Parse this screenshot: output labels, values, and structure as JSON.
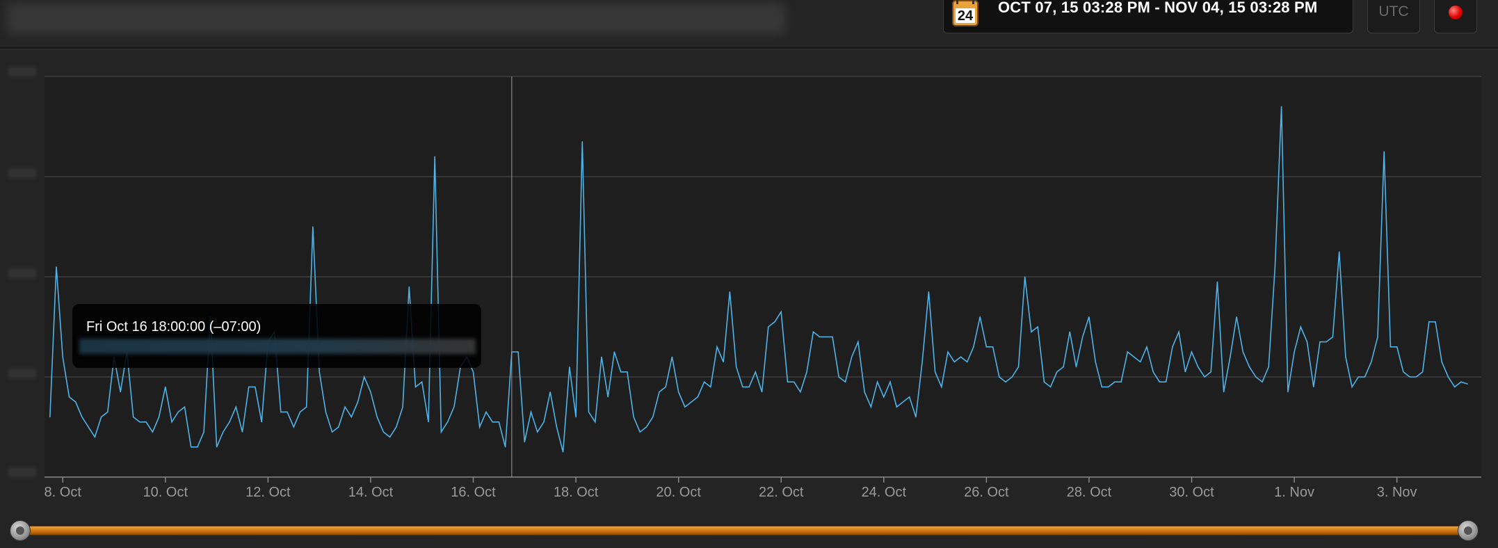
{
  "header": {
    "calendar_day": "24",
    "date_range": "OCT 07, 15 03:28 PM - NOV 04, 15 03:28 PM",
    "timezone_label": "UTC"
  },
  "tooltip": {
    "title": "Fri Oct 16 18:00:00 (–07:00)"
  },
  "colors": {
    "series": "#4fb3e8",
    "accent_slider": "#e08a1e",
    "record": "#e00000"
  },
  "chart_data": {
    "type": "line",
    "x_axis": {
      "type": "date",
      "range": [
        "2015-10-07 15:28",
        "2015-11-04 15:28"
      ],
      "tick_labels": [
        "8. Oct",
        "10. Oct",
        "12. Oct",
        "14. Oct",
        "16. Oct",
        "18. Oct",
        "20. Oct",
        "22. Oct",
        "24. Oct",
        "26. Oct",
        "28. Oct",
        "30. Oct",
        "1. Nov",
        "3. Nov"
      ],
      "tick_dates": [
        "2015-10-08",
        "2015-10-10",
        "2015-10-12",
        "2015-10-14",
        "2015-10-16",
        "2015-10-18",
        "2015-10-20",
        "2015-10-22",
        "2015-10-24",
        "2015-10-26",
        "2015-10-28",
        "2015-10-30",
        "2015-11-01",
        "2015-11-03"
      ]
    },
    "ylim": [
      0,
      4
    ],
    "grid": true,
    "crosshair": "2015-10-16 18:00",
    "series": [
      {
        "sampling": "3h",
        "start": "2015-10-07 15:00",
        "values": [
          0.55,
          0.6,
          2.1,
          1.2,
          0.8,
          0.75,
          0.6,
          0.5,
          0.4,
          0.6,
          0.65,
          1.2,
          0.85,
          1.25,
          0.6,
          0.55,
          0.55,
          0.45,
          0.6,
          0.9,
          0.55,
          0.65,
          0.7,
          0.3,
          0.3,
          0.45,
          1.6,
          0.3,
          0.45,
          0.55,
          0.7,
          0.45,
          0.9,
          0.9,
          0.55,
          1.35,
          1.45,
          0.65,
          0.65,
          0.5,
          0.65,
          0.7,
          2.5,
          1.05,
          0.65,
          0.45,
          0.5,
          0.7,
          0.6,
          0.75,
          1.0,
          0.85,
          0.6,
          0.45,
          0.4,
          0.5,
          0.7,
          1.9,
          0.9,
          0.95,
          0.55,
          3.2,
          0.45,
          0.55,
          0.7,
          1.1,
          1.2,
          1.05,
          0.5,
          0.65,
          0.55,
          0.55,
          0.3,
          1.25,
          1.25,
          0.35,
          0.65,
          0.45,
          0.55,
          0.85,
          0.5,
          0.25,
          1.1,
          0.6,
          3.35,
          0.65,
          0.55,
          1.2,
          0.8,
          1.25,
          1.05,
          1.05,
          0.6,
          0.45,
          0.5,
          0.6,
          0.85,
          0.9,
          1.2,
          0.85,
          0.7,
          0.75,
          0.8,
          0.95,
          0.9,
          1.3,
          1.15,
          1.85,
          1.1,
          0.9,
          0.9,
          1.05,
          0.85,
          1.5,
          1.55,
          1.65,
          0.95,
          0.95,
          0.85,
          1.05,
          1.45,
          1.4,
          1.4,
          1.4,
          1.0,
          0.95,
          1.2,
          1.35,
          0.85,
          0.7,
          0.95,
          0.8,
          0.95,
          0.7,
          0.75,
          0.8,
          0.6,
          1.15,
          1.85,
          1.05,
          0.9,
          1.25,
          1.15,
          1.2,
          1.15,
          1.3,
          1.6,
          1.3,
          1.3,
          1.0,
          0.95,
          1.0,
          1.1,
          2.0,
          1.45,
          1.5,
          0.95,
          0.9,
          1.05,
          1.1,
          1.45,
          1.1,
          1.4,
          1.6,
          1.15,
          0.9,
          0.9,
          0.95,
          0.95,
          1.25,
          1.2,
          1.15,
          1.3,
          1.05,
          0.95,
          0.95,
          1.3,
          1.45,
          1.05,
          1.25,
          1.1,
          1.0,
          1.05,
          1.95,
          0.85,
          1.2,
          1.6,
          1.25,
          1.1,
          1.0,
          0.95,
          1.1,
          2.1,
          3.7,
          0.85,
          1.25,
          1.5,
          1.35,
          0.9,
          1.35,
          1.35,
          1.4,
          2.25,
          1.2,
          0.9,
          1.0,
          1.0,
          1.15,
          1.4,
          3.25,
          1.3,
          1.3,
          1.05,
          1.0,
          1.0,
          1.05,
          1.55,
          1.55,
          1.15,
          1.0,
          0.9,
          0.95,
          0.93
        ]
      }
    ]
  }
}
